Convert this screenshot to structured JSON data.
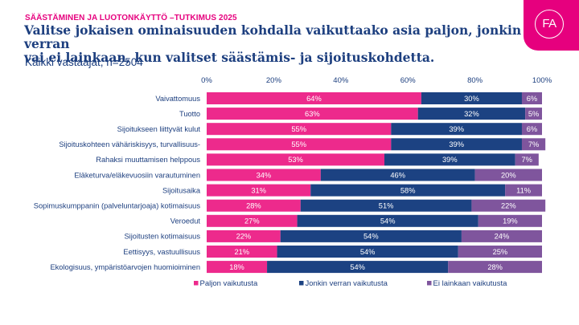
{
  "header": {
    "supertitle": "SÄÄSTÄMINEN JA LUOTONKÄYTTÖ –TUTKIMUS 2025",
    "title_line1": "Valitse jokaisen ominaisuuden kohdalla vaikuttaako asia paljon, jonkin verran",
    "title_line2": "vai ei lainkaan, kun valitset säästämis- ja sijoituskohdetta.",
    "subtitle": "Kaikki vastaajat, n=2504",
    "logo_text": "FA"
  },
  "colors": {
    "paljon": "#ed2a8c",
    "jonkin": "#1c4282",
    "ei": "#7f559d",
    "brand": "#e6007e",
    "text": "#1d3f7f"
  },
  "chart_data": {
    "type": "bar",
    "orientation": "horizontal",
    "stacked": true,
    "title": "Valitse jokaisen ominaisuuden kohdalla vaikuttaako asia paljon, jonkin verran vai ei lainkaan, kun valitset säästämis- ja sijoituskohdetta.",
    "subtitle": "Kaikki vastaajat, n=2504",
    "xlabel": "",
    "ylabel": "",
    "xlim": [
      0,
      100
    ],
    "x_ticks": [
      "0%",
      "20%",
      "40%",
      "60%",
      "80%",
      "100%"
    ],
    "x_tick_values": [
      0,
      20,
      40,
      60,
      80,
      100
    ],
    "axis_position": "top",
    "grid": false,
    "legend_position": "bottom",
    "categories": [
      "Vaivattomuus",
      "Tuotto",
      "Sijoitukseen liittyvät kulut",
      "Sijoituskohteen vähäriskisyys, turvallisuus-",
      "Rahaksi muuttamisen helppous",
      "Eläketurva/eläkevuosiin varautuminen",
      "Sijoitusaika",
      "Sopimuskumppanin (palveluntarjoaja) kotimaisuus",
      "Veroedut",
      "Sijoitusten kotimaisuus",
      "Eettisyys, vastuullisuus",
      "Ekologisuus, ympäristöarvojen huomioiminen"
    ],
    "series": [
      {
        "name": "Paljon vaikutusta",
        "color_key": "paljon",
        "values": [
          64,
          63,
          55,
          55,
          53,
          34,
          31,
          28,
          27,
          22,
          21,
          18
        ]
      },
      {
        "name": "Jonkin verran vaikutusta",
        "color_key": "jonkin",
        "values": [
          30,
          32,
          39,
          39,
          39,
          46,
          58,
          51,
          54,
          54,
          54,
          54
        ]
      },
      {
        "name": "Ei lainkaan vaikutusta",
        "color_key": "ei",
        "values": [
          6,
          5,
          6,
          7,
          7,
          20,
          11,
          22,
          19,
          24,
          25,
          28
        ]
      }
    ],
    "value_suffix": "%"
  }
}
